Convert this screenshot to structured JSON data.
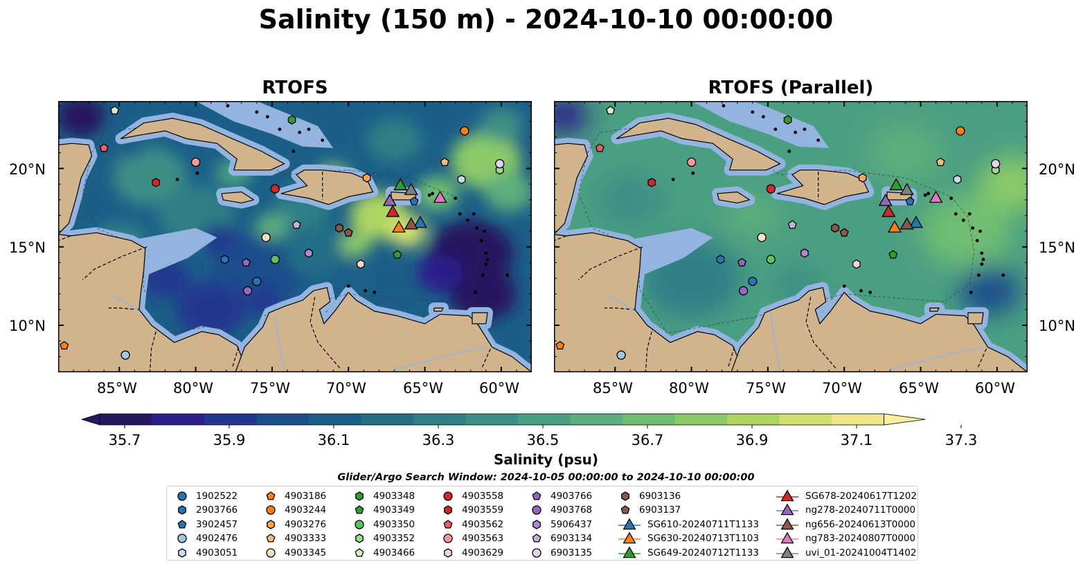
{
  "title": "Salinity (150 m) - 2024-10-10 00:00:00",
  "panels": [
    {
      "title": "RTOFS",
      "style": "contrast"
    },
    {
      "title": "RTOFS (Parallel)",
      "style": "smooth"
    }
  ],
  "lon_ticks": [
    "85°W",
    "80°W",
    "75°W",
    "70°W",
    "65°W",
    "60°W"
  ],
  "lat_ticks": [
    "20°N",
    "15°N",
    "10°N"
  ],
  "colorbar": {
    "ticks": [
      "35.7",
      "35.9",
      "36.1",
      "36.3",
      "36.5",
      "36.7",
      "36.9",
      "37.1",
      "37.3"
    ],
    "label": "Salinity (psu)",
    "colors": [
      "#26185f",
      "#2a1f8a",
      "#23378f",
      "#1d4e8c",
      "#1b5f88",
      "#246e86",
      "#2f7f86",
      "#3c8f86",
      "#4a9f82",
      "#5bae7c",
      "#6fbd72",
      "#8cca67",
      "#aed562",
      "#d3df6c",
      "#f1e58a"
    ]
  },
  "search_window": "Glider/Argo Search Window: 2024-10-05 00:00:00 to 2024-10-10 00:00:00",
  "land_color": "#d2b48c",
  "shelf_color": "#93b4de",
  "legend": [
    {
      "label": "1902522",
      "shape": "circle",
      "color": "#1f77b4"
    },
    {
      "label": "2903766",
      "shape": "hexagon",
      "color": "#1f77b4"
    },
    {
      "label": "3902457",
      "shape": "pentagon",
      "color": "#1f77b4"
    },
    {
      "label": "4902476",
      "shape": "circle",
      "color": "#9ecae1"
    },
    {
      "label": "4903051",
      "shape": "hexagon",
      "color": "#c6dbef"
    },
    {
      "label": "4903186",
      "shape": "pentagon",
      "color": "#ff7f0e"
    },
    {
      "label": "4903244",
      "shape": "circle",
      "color": "#ff7f0e"
    },
    {
      "label": "4903276",
      "shape": "hexagon",
      "color": "#ffa54f"
    },
    {
      "label": "4903333",
      "shape": "pentagon",
      "color": "#ffbb78"
    },
    {
      "label": "4903345",
      "shape": "circle",
      "color": "#ffe0c2"
    },
    {
      "label": "4903348",
      "shape": "hexagon",
      "color": "#2ca02c"
    },
    {
      "label": "4903349",
      "shape": "pentagon",
      "color": "#2ca02c"
    },
    {
      "label": "4903350",
      "shape": "circle",
      "color": "#5cc35c"
    },
    {
      "label": "4903352",
      "shape": "hexagon",
      "color": "#98df8a"
    },
    {
      "label": "4903466",
      "shape": "pentagon",
      "color": "#d4f5c6"
    },
    {
      "label": "4903558",
      "shape": "circle",
      "color": "#d62728"
    },
    {
      "label": "4903559",
      "shape": "hexagon",
      "color": "#d62728"
    },
    {
      "label": "4903562",
      "shape": "pentagon",
      "color": "#e8605f"
    },
    {
      "label": "4903563",
      "shape": "circle",
      "color": "#ff9896"
    },
    {
      "label": "4903629",
      "shape": "hexagon",
      "color": "#ffd6d5"
    },
    {
      "label": "4903766",
      "shape": "pentagon",
      "color": "#9467bd"
    },
    {
      "label": "4903768",
      "shape": "circle",
      "color": "#9467bd"
    },
    {
      "label": "5906437",
      "shape": "hexagon",
      "color": "#b088d6"
    },
    {
      "label": "6903134",
      "shape": "pentagon",
      "color": "#c5b0d5"
    },
    {
      "label": "6903135",
      "shape": "circle",
      "color": "#e6d5f2"
    },
    {
      "label": "6903136",
      "shape": "hexagon",
      "color": "#8c564b"
    },
    {
      "label": "6903137",
      "shape": "pentagon",
      "color": "#8c564b"
    },
    {
      "label": "SG610-20240711T1133",
      "shape": "triangle",
      "color": "#1f77b4"
    },
    {
      "label": "SG630-20240713T1103",
      "shape": "triangle",
      "color": "#ff7f0e"
    },
    {
      "label": "SG649-20240712T1133",
      "shape": "triangle",
      "color": "#2ca02c"
    },
    {
      "label": "SG678-20240617T1202",
      "shape": "triangle",
      "color": "#d62728"
    },
    {
      "label": "ng278-20240711T0000",
      "shape": "triangle",
      "color": "#9467bd"
    },
    {
      "label": "ng656-20240613T0000",
      "shape": "triangle",
      "color": "#8c564b"
    },
    {
      "label": "ng783-20240807T0000",
      "shape": "triangle",
      "color": "#e377c2"
    },
    {
      "label": "uvi_01-20241004T1402",
      "shape": "triangle",
      "color": "#7f7f7f"
    }
  ],
  "markers": [
    {
      "shape": "circle",
      "color": "#1f77b4",
      "lon": -76.0,
      "lat": 12.8
    },
    {
      "shape": "hexagon",
      "color": "#1f77b4",
      "lon": -78.1,
      "lat": 14.2
    },
    {
      "shape": "pentagon",
      "color": "#1f77b4",
      "lon": -65.7,
      "lat": 17.9
    },
    {
      "shape": "circle",
      "color": "#9ecae1",
      "lon": -84.6,
      "lat": 8.1
    },
    {
      "shape": "hexagon",
      "color": "#c6dbef",
      "lon": -62.6,
      "lat": 19.3
    },
    {
      "shape": "pentagon",
      "color": "#ff7f0e",
      "lon": -88.6,
      "lat": 8.7
    },
    {
      "shape": "circle",
      "color": "#ff7f0e",
      "lon": -62.4,
      "lat": 22.4
    },
    {
      "shape": "hexagon",
      "color": "#ffa54f",
      "lon": -68.8,
      "lat": 19.4
    },
    {
      "shape": "pentagon",
      "color": "#ffbb78",
      "lon": -63.7,
      "lat": 20.4
    },
    {
      "shape": "circle",
      "color": "#ffe0c2",
      "lon": -75.4,
      "lat": 15.6
    },
    {
      "shape": "hexagon",
      "color": "#2ca02c",
      "lon": -73.7,
      "lat": 23.1
    },
    {
      "shape": "pentagon",
      "color": "#2ca02c",
      "lon": -66.8,
      "lat": 14.5
    },
    {
      "shape": "circle",
      "color": "#5cc35c",
      "lon": -74.8,
      "lat": 14.2
    },
    {
      "shape": "hexagon",
      "color": "#98df8a",
      "lon": -60.1,
      "lat": 19.9
    },
    {
      "shape": "pentagon",
      "color": "#d4f5c6",
      "lon": -85.3,
      "lat": 23.7
    },
    {
      "shape": "circle",
      "color": "#d62728",
      "lon": -74.8,
      "lat": 18.7
    },
    {
      "shape": "hexagon",
      "color": "#d62728",
      "lon": -82.6,
      "lat": 19.1
    },
    {
      "shape": "pentagon",
      "color": "#e8605f",
      "lon": -86.0,
      "lat": 21.3
    },
    {
      "shape": "circle",
      "color": "#ff9896",
      "lon": -80.0,
      "lat": 20.4
    },
    {
      "shape": "hexagon",
      "color": "#ffd6d5",
      "lon": -69.2,
      "lat": 13.9
    },
    {
      "shape": "pentagon",
      "color": "#9467bd",
      "lon": -76.7,
      "lat": 14.0
    },
    {
      "shape": "circle",
      "color": "#9467bd",
      "lon": -76.6,
      "lat": 12.2
    },
    {
      "shape": "hexagon",
      "color": "#b088d6",
      "lon": -72.6,
      "lat": 14.6
    },
    {
      "shape": "pentagon",
      "color": "#c5b0d5",
      "lon": -73.4,
      "lat": 16.4
    },
    {
      "shape": "circle",
      "color": "#e6d5f2",
      "lon": -60.1,
      "lat": 20.3
    },
    {
      "shape": "hexagon",
      "color": "#8c564b",
      "lon": -70.6,
      "lat": 16.2
    },
    {
      "shape": "pentagon",
      "color": "#8c564b",
      "lon": -70.0,
      "lat": 15.9
    },
    {
      "shape": "triangle",
      "color": "#1f77b4",
      "lon": -65.3,
      "lat": 16.5
    },
    {
      "shape": "triangle",
      "color": "#ff7f0e",
      "lon": -66.7,
      "lat": 16.2
    },
    {
      "shape": "triangle",
      "color": "#2ca02c",
      "lon": -66.6,
      "lat": 18.9
    },
    {
      "shape": "triangle",
      "color": "#d62728",
      "lon": -67.1,
      "lat": 17.2
    },
    {
      "shape": "triangle",
      "color": "#9467bd",
      "lon": -67.3,
      "lat": 17.9
    },
    {
      "shape": "triangle",
      "color": "#8c564b",
      "lon": -65.9,
      "lat": 16.4
    },
    {
      "shape": "triangle",
      "color": "#e377c2",
      "lon": -64.0,
      "lat": 18.1
    },
    {
      "shape": "triangle",
      "color": "#7f7f7f",
      "lon": -65.9,
      "lat": 18.6
    }
  ]
}
